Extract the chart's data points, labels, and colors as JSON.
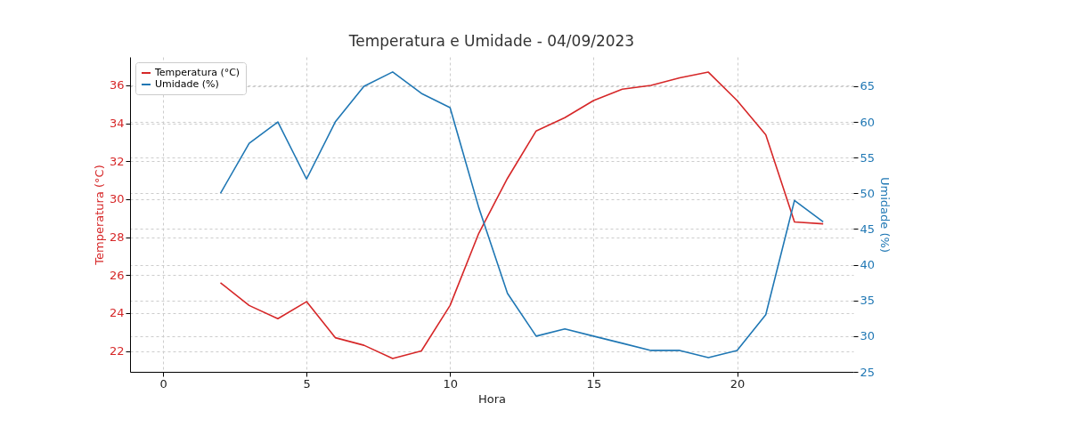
{
  "chart_data": {
    "type": "line",
    "title": "Temperatura e Umidade - 04/09/2023",
    "xlabel": "Hora",
    "ylabel": "Temperatura (°C)",
    "y2label": "Umidade (%)",
    "x": [
      2,
      3,
      4,
      5,
      6,
      7,
      8,
      9,
      10,
      11,
      12,
      13,
      14,
      15,
      16,
      17,
      18,
      19,
      20,
      21,
      22,
      23
    ],
    "series": [
      {
        "name": "Temperatura (°C)",
        "color": "#d62728",
        "values": [
          25.6,
          24.4,
          23.7,
          24.6,
          22.7,
          22.3,
          21.6,
          22.0,
          24.4,
          28.2,
          31.1,
          33.6,
          34.3,
          35.2,
          35.8,
          36.0,
          36.4,
          36.7,
          35.2,
          33.4,
          28.8,
          28.7
        ]
      },
      {
        "name": "Umidade (%)",
        "color": "#1f77b4",
        "axis": "y2",
        "values": [
          50,
          57,
          60,
          52,
          60,
          65,
          67,
          64,
          62,
          48,
          36,
          30,
          31,
          30,
          29,
          28,
          28,
          27,
          28,
          33,
          49,
          46
        ]
      }
    ],
    "xlim": [
      -1.15,
      24.05
    ],
    "xticks": [
      0,
      5,
      10,
      15,
      20
    ],
    "ylim": [
      20.9,
      37.5
    ],
    "yticks": [
      22,
      24,
      26,
      28,
      30,
      32,
      34,
      36
    ],
    "y2lim": [
      25,
      69.1
    ],
    "y2ticks": [
      25,
      30,
      35,
      40,
      45,
      50,
      55,
      60,
      65
    ],
    "grid": true,
    "legend": "top left"
  }
}
